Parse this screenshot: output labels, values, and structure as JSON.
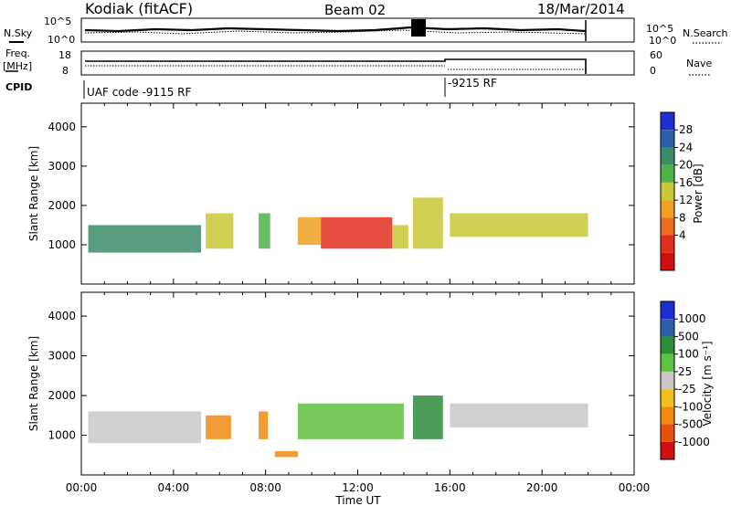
{
  "header": {
    "station": "Kodiak (fitACF)",
    "beam": "Beam 02",
    "date": "18/Mar/2014"
  },
  "panels": {
    "nsky_label": "N.Sky",
    "nsearch_label": "N.Search",
    "noise_ticks_left": [
      "10^5",
      "10^0"
    ],
    "noise_ticks_right": [
      "10^5",
      "10^0"
    ],
    "freq_label": "Freq.",
    "freq_unit": "[MHz]",
    "freq_ticks": [
      "18",
      "8"
    ],
    "nave_label": "Nave",
    "nave_ticks": [
      "60",
      "0"
    ],
    "cpid_label": "CPID",
    "cpid_segments": [
      {
        "label": "UAF code -9115 RF",
        "start_hour": 0
      },
      {
        "label": "-9215 RF",
        "start_hour": 15.85
      }
    ]
  },
  "chart_data": [
    {
      "type": "heatmap",
      "name": "power",
      "ylabel": "Slant Range [km]",
      "xlabel": "Time UT",
      "xlim_hours": [
        0,
        24
      ],
      "ylim": [
        0,
        4600
      ],
      "y_ticks": [
        "1000",
        "2000",
        "3000",
        "4000"
      ],
      "colorbar": {
        "label": "Power [dB]",
        "ticks": [
          "4",
          "8",
          "12",
          "16",
          "20",
          "24",
          "28"
        ],
        "colors": [
          "#1c2fd0",
          "#2f5fa8",
          "#3c8c6a",
          "#4fb14a",
          "#c8c83a",
          "#f0a020",
          "#ee6a1e",
          "#e03020",
          "#d01010"
        ]
      },
      "regions": [
        {
          "t0": 0.3,
          "t1": 5.2,
          "r0": 800,
          "r1": 1500,
          "level": 2
        },
        {
          "t0": 5.4,
          "t1": 6.6,
          "r0": 900,
          "r1": 1800,
          "level": 4
        },
        {
          "t0": 7.7,
          "t1": 8.2,
          "r0": 900,
          "r1": 1800,
          "level": 3
        },
        {
          "t0": 9.4,
          "t1": 10.4,
          "r0": 1000,
          "r1": 1700,
          "level": 5
        },
        {
          "t0": 10.4,
          "t1": 13.5,
          "r0": 900,
          "r1": 1700,
          "level": 7
        },
        {
          "t0": 13.5,
          "t1": 14.2,
          "r0": 900,
          "r1": 1500,
          "level": 4
        },
        {
          "t0": 14.4,
          "t1": 15.7,
          "r0": 900,
          "r1": 2200,
          "level": 4
        },
        {
          "t0": 16.0,
          "t1": 22.0,
          "r0": 1200,
          "r1": 1800,
          "level": 4
        }
      ]
    },
    {
      "type": "heatmap",
      "name": "velocity",
      "ylabel": "Slant Range [km]",
      "xlabel": "Time UT",
      "xlim_hours": [
        0,
        24
      ],
      "ylim": [
        0,
        4600
      ],
      "y_ticks": [
        "1000",
        "2000",
        "3000",
        "4000"
      ],
      "colorbar": {
        "label": "Velocity [m s⁻¹]",
        "ticks": [
          "1000",
          "500",
          "100",
          "25",
          "-25",
          "-100",
          "-500",
          "-1000"
        ],
        "colors": [
          "#1c2fd0",
          "#2f5fa8",
          "#2d8c3a",
          "#60c040",
          "#c8c8c8",
          "#f0c020",
          "#f08a10",
          "#e85010",
          "#d01010"
        ]
      },
      "regions": [
        {
          "t0": 0.3,
          "t1": 5.2,
          "r0": 800,
          "r1": 1600,
          "level": 4
        },
        {
          "t0": 5.4,
          "t1": 6.5,
          "r0": 900,
          "r1": 1500,
          "level": 6
        },
        {
          "t0": 7.7,
          "t1": 8.1,
          "r0": 900,
          "r1": 1600,
          "level": 6
        },
        {
          "t0": 8.4,
          "t1": 9.4,
          "r0": 450,
          "r1": 600,
          "level": 6
        },
        {
          "t0": 9.4,
          "t1": 14.0,
          "r0": 900,
          "r1": 1800,
          "level": 3
        },
        {
          "t0": 14.4,
          "t1": 15.7,
          "r0": 900,
          "r1": 2000,
          "level": 2
        },
        {
          "t0": 16.0,
          "t1": 22.0,
          "r0": 1200,
          "r1": 1800,
          "level": 4
        }
      ]
    }
  ],
  "time_axis": {
    "ticks": [
      "00:00",
      "04:00",
      "08:00",
      "12:00",
      "16:00",
      "20:00",
      "00:00"
    ],
    "title": "Time UT"
  }
}
